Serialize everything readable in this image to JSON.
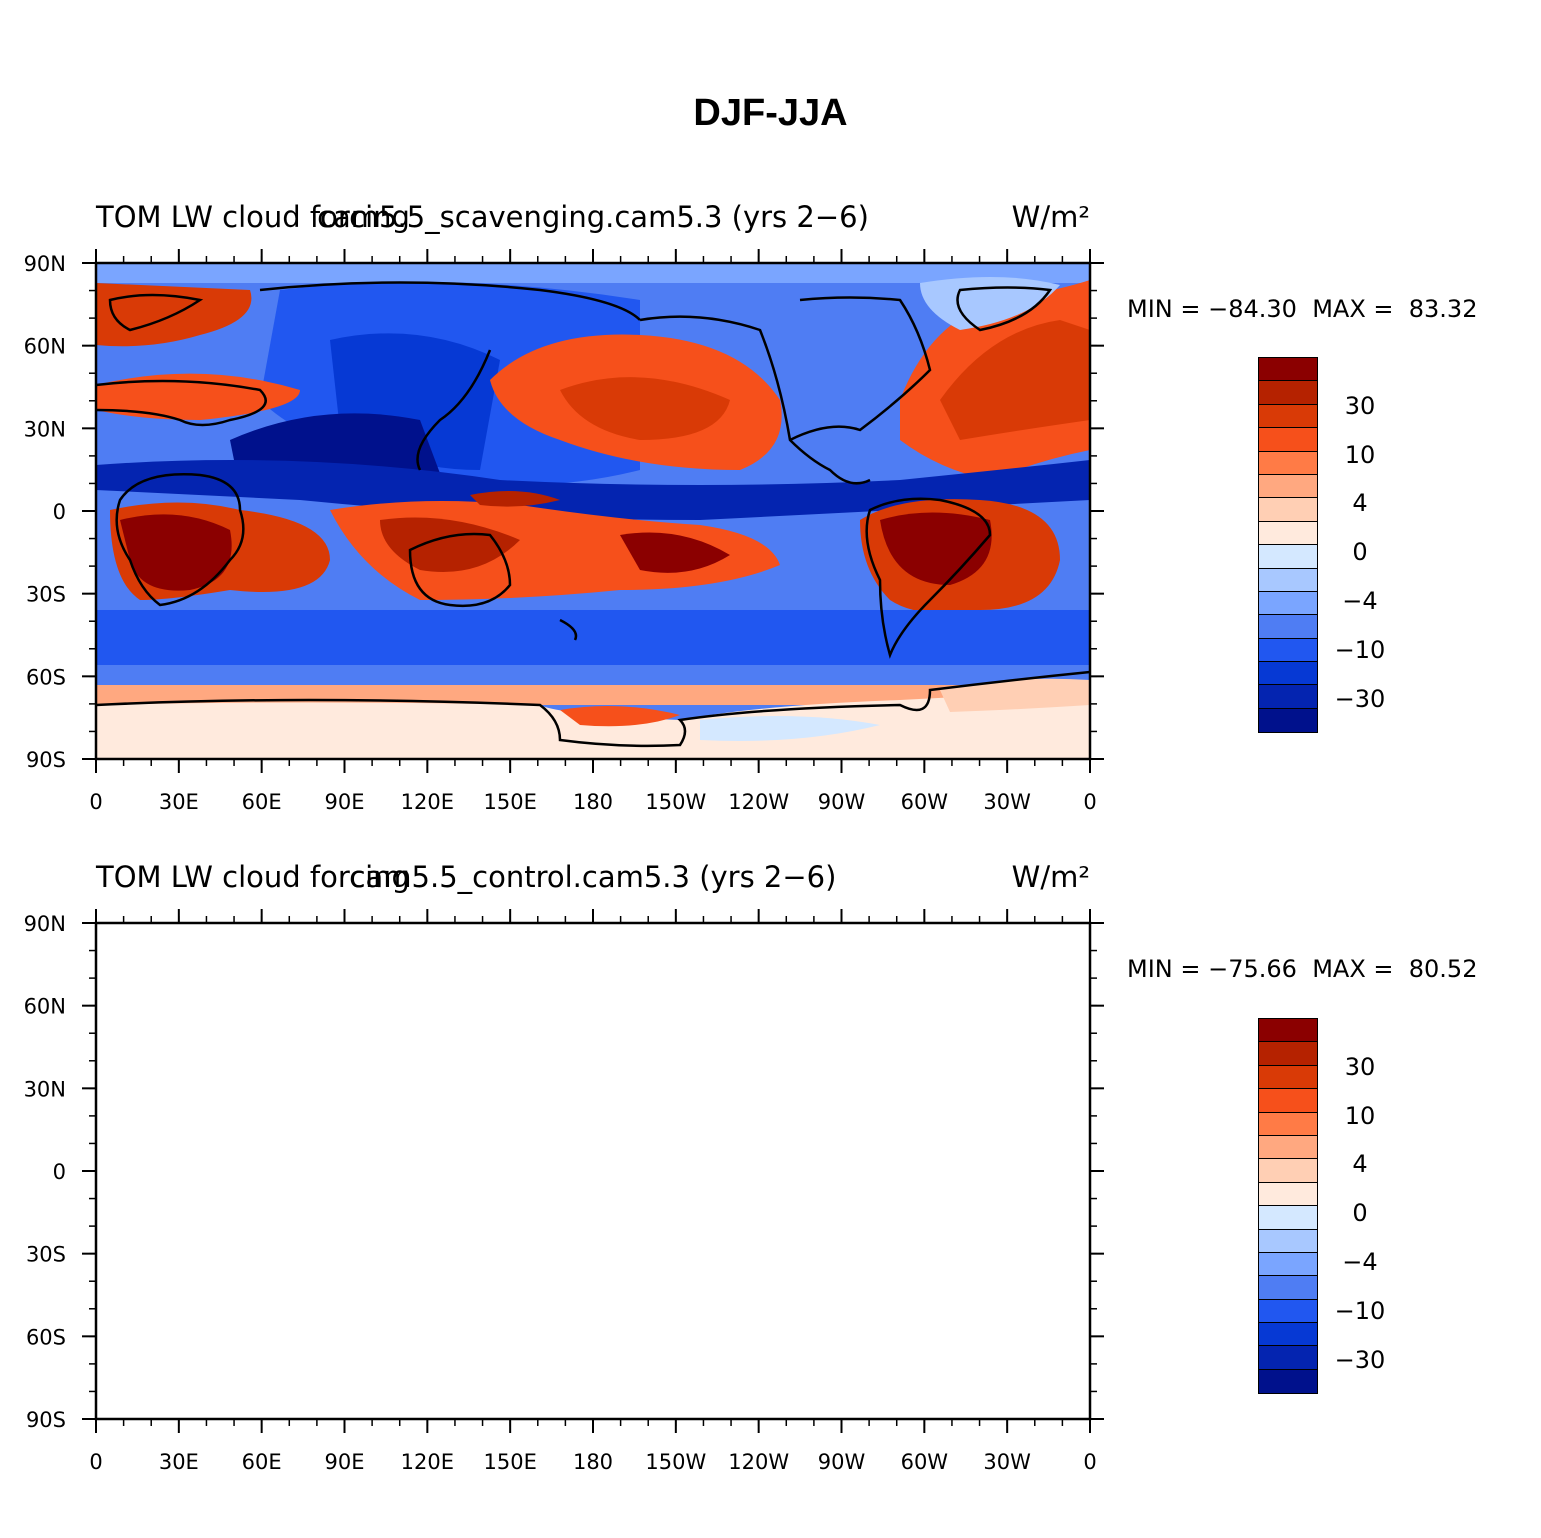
{
  "title": "DJF-JJA",
  "panels": [
    {
      "left_title": "TOM LW cloud forcing",
      "center_title": "cam5.5_scavenging.cam5.3 (yrs 2−6)",
      "units": "W/m²",
      "min_label": "MIN = −84.30",
      "max_label": "MAX =  83.32"
    },
    {
      "left_title": "TOM LW cloud forcing",
      "center_title": "cam5.5_control.cam5.3 (yrs 2−6)",
      "units": "W/m²",
      "min_label": "MIN = −75.66",
      "max_label": "MAX =  80.52"
    }
  ],
  "axes": {
    "lat_labels": [
      "90N",
      "60N",
      "30N",
      "0",
      "30S",
      "60S",
      "90S"
    ],
    "lon_labels": [
      "0",
      "30E",
      "60E",
      "90E",
      "120E",
      "150E",
      "180",
      "150W",
      "120W",
      "90W",
      "60W",
      "30W",
      "0"
    ]
  },
  "colorbar": {
    "colors": [
      "#8b0000",
      "#b52200",
      "#d93a06",
      "#f6501b",
      "#ff7b46",
      "#ffa880",
      "#ffcfb4",
      "#ffeadd",
      "#d4e8ff",
      "#a8c8ff",
      "#7aa5ff",
      "#4f7df3",
      "#2157f0",
      "#0639d4",
      "#0424b0",
      "#00118c"
    ],
    "tick_labels": [
      "30",
      "10",
      "4",
      "0",
      "−4",
      "−10",
      "−30"
    ]
  }
}
